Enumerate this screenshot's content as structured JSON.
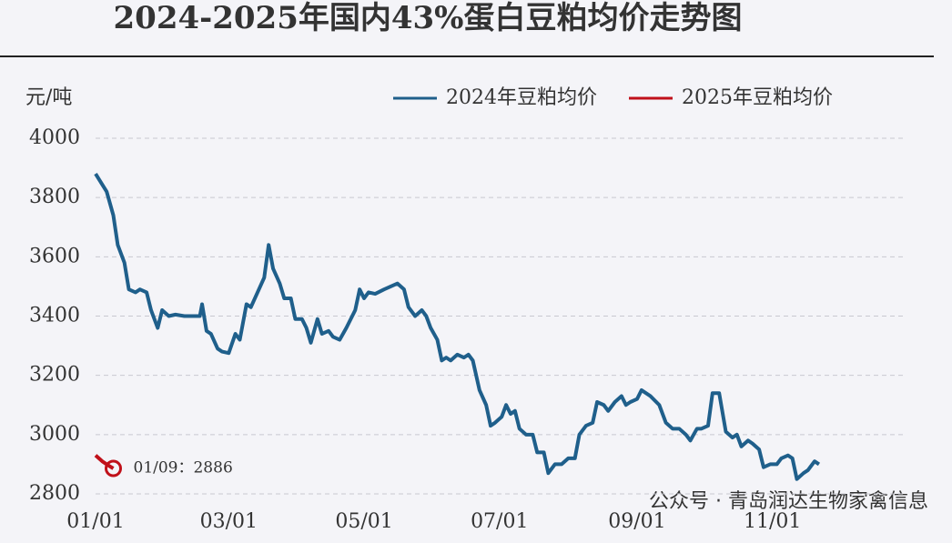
{
  "chart_data": {
    "type": "line",
    "title": "2024-2025年国内43%蛋白豆粕均价走势图",
    "y_label": "元/吨",
    "xlim": [
      0,
      365
    ],
    "xticks": [
      {
        "value": 0,
        "label": "01/01"
      },
      {
        "value": 60,
        "label": "03/01"
      },
      {
        "value": 121,
        "label": "05/01"
      },
      {
        "value": 182,
        "label": "07/01"
      },
      {
        "value": 244,
        "label": "09/01"
      },
      {
        "value": 305,
        "label": "11/01"
      }
    ],
    "ylim": [
      2800,
      4000
    ],
    "yticks": [
      2800,
      3000,
      3200,
      3400,
      3600,
      3800,
      4000
    ],
    "grid": true,
    "legend": "top-right",
    "series": [
      {
        "name": "2024年豆粕均价",
        "color": "#1f5f8b",
        "x": [
          0,
          5,
          8,
          10,
          13,
          15,
          18,
          20,
          23,
          25,
          28,
          30,
          33,
          36,
          40,
          45,
          47,
          48,
          50,
          52,
          55,
          57,
          60,
          63,
          65,
          68,
          70,
          73,
          76,
          78,
          80,
          83,
          85,
          88,
          90,
          93,
          95,
          97,
          100,
          102,
          105,
          107,
          110,
          113,
          117,
          119,
          121,
          123,
          126,
          130,
          133,
          136,
          139,
          141,
          144,
          147,
          149,
          151,
          154,
          156,
          158,
          160,
          163,
          166,
          168,
          170,
          173,
          176,
          178,
          180,
          183,
          185,
          187,
          189,
          191,
          194,
          197,
          199,
          202,
          204,
          207,
          210,
          213,
          216,
          218,
          221,
          224,
          226,
          229,
          231,
          234,
          237,
          239,
          241,
          244,
          246,
          250,
          254,
          257,
          260,
          263,
          266,
          268,
          271,
          273,
          276,
          278,
          281,
          284,
          287,
          289,
          291,
          294,
          296,
          299,
          301,
          304,
          307,
          309,
          312,
          314,
          316,
          319,
          321,
          324,
          326
        ],
        "values": [
          3880,
          3820,
          3740,
          3640,
          3580,
          3490,
          3480,
          3490,
          3480,
          3420,
          3360,
          3420,
          3400,
          3405,
          3400,
          3400,
          3400,
          3440,
          3350,
          3340,
          3290,
          3280,
          3275,
          3340,
          3320,
          3440,
          3430,
          3480,
          3530,
          3640,
          3560,
          3510,
          3460,
          3460,
          3390,
          3390,
          3360,
          3310,
          3390,
          3340,
          3350,
          3330,
          3320,
          3360,
          3420,
          3490,
          3460,
          3480,
          3475,
          3490,
          3500,
          3510,
          3490,
          3430,
          3400,
          3420,
          3400,
          3360,
          3320,
          3250,
          3260,
          3250,
          3270,
          3260,
          3270,
          3250,
          3150,
          3100,
          3030,
          3040,
          3060,
          3100,
          3070,
          3080,
          3020,
          3000,
          3000,
          2940,
          2940,
          2870,
          2900,
          2900,
          2920,
          2920,
          3000,
          3030,
          3040,
          3110,
          3100,
          3080,
          3110,
          3130,
          3100,
          3110,
          3120,
          3150,
          3130,
          3100,
          3040,
          3020,
          3020,
          3000,
          2980,
          3020,
          3020,
          3030,
          3140,
          3140,
          3010,
          2990,
          3000,
          2960,
          2980,
          2970,
          2950,
          2890,
          2900,
          2900,
          2920,
          2930,
          2920,
          2850,
          2870,
          2880,
          2910,
          2900
        ]
      },
      {
        "name": "2025年豆粕均价",
        "color": "#c0101a",
        "x": [
          0,
          3,
          6,
          8
        ],
        "values": [
          2930,
          2910,
          2895,
          2886
        ]
      }
    ],
    "annotation": "01/09：2886",
    "watermark": "公众号 · 青岛润达生物家禽信息"
  }
}
